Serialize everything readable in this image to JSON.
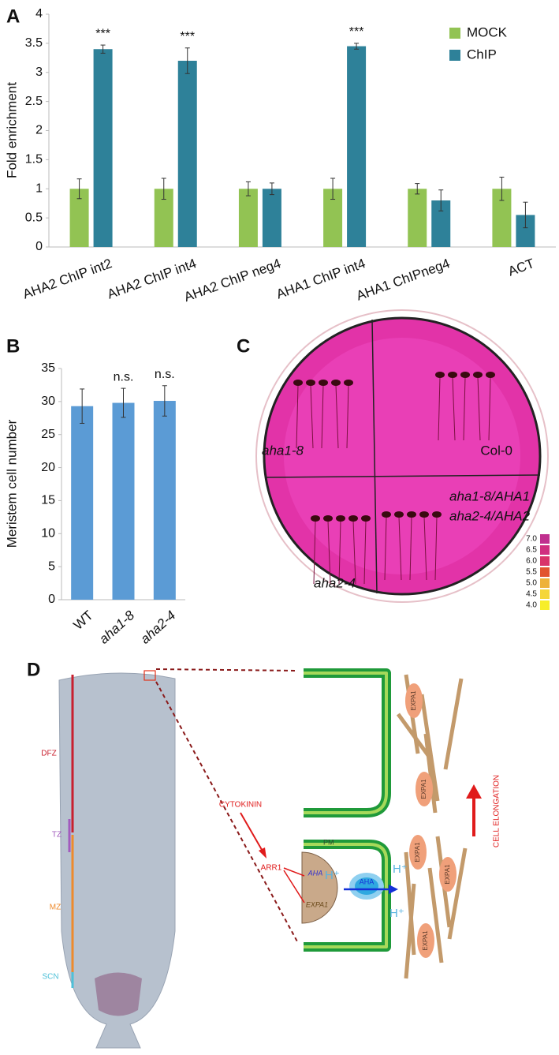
{
  "chart_data": [
    {
      "type": "bar",
      "y_label": "Fold enrichment",
      "categories": [
        "AHA2 ChIP int2",
        "AHA2 ChIP int4",
        "AHA2 ChIP neg4",
        "AHA1 ChIP int4",
        "AHA1 ChIPneg4",
        "ACT"
      ],
      "series": [
        {
          "name": "MOCK",
          "color": "#92c353",
          "values": [
            1,
            1,
            1,
            1,
            1,
            1
          ],
          "errors": [
            0.17,
            0.18,
            0.12,
            0.18,
            0.09,
            0.2
          ]
        },
        {
          "name": "ChIP",
          "color": "#2e8199",
          "values": [
            3.4,
            3.2,
            1,
            3.45,
            0.8,
            0.55
          ],
          "errors": [
            0.07,
            0.22,
            0.1,
            0.05,
            0.18,
            0.22
          ]
        }
      ],
      "significance": [
        "***",
        "***",
        null,
        "***",
        null,
        null
      ],
      "ylim": [
        0,
        4
      ],
      "yticks": [
        0,
        0.5,
        1,
        1.5,
        2,
        2.5,
        3,
        3.5,
        4
      ],
      "legend": "top-right"
    },
    {
      "type": "bar",
      "y_label": "Meristem cell number",
      "categories": [
        "WT",
        "aha1-8",
        "aha2-4"
      ],
      "italic": [
        false,
        true,
        true
      ],
      "series": [
        {
          "color": "#5b9bd5",
          "values": [
            29.3,
            29.8,
            30.1
          ],
          "errors": [
            2.6,
            2.2,
            2.3
          ]
        }
      ],
      "significance": [
        null,
        "n.s.",
        "n.s."
      ],
      "ylim": [
        0,
        35
      ],
      "yticks": [
        0,
        5,
        10,
        15,
        20,
        25,
        30,
        35
      ]
    }
  ],
  "panel_labels": [
    "A",
    "B",
    "C",
    "D"
  ],
  "plate": {
    "labels": [
      "aha1-8",
      "Col-0",
      "aha1-8/AHA1",
      "aha2-4/AHA2",
      "aha2-4"
    ],
    "ph_scale": {
      "labels": [
        "7.0",
        "6.5",
        "6.0",
        "5.5",
        "5.0",
        "4.5",
        "4.0"
      ],
      "colors": [
        "#c0308f",
        "#d02f80",
        "#d9336a",
        "#e2542f",
        "#eeb23a",
        "#f5d63a",
        "#f7ee2a"
      ]
    }
  },
  "root": {
    "zones": [
      {
        "label": "DFZ",
        "color": "#c8202f"
      },
      {
        "label": "TZ",
        "color": "#a25bbd"
      },
      {
        "label": "MZ",
        "color": "#ee8a2c"
      },
      {
        "label": "SCN",
        "color": "#4ec0d8"
      }
    ]
  },
  "diagram": {
    "stimulus": "CYTOKININ",
    "regulator": "ARR1",
    "genes": [
      "AHA",
      "EXPA1"
    ],
    "pump": "AHA",
    "ion": "H⁺",
    "membrane": "PM",
    "expansin": "EXPA1",
    "outcome": "CELL ELONGATION"
  }
}
